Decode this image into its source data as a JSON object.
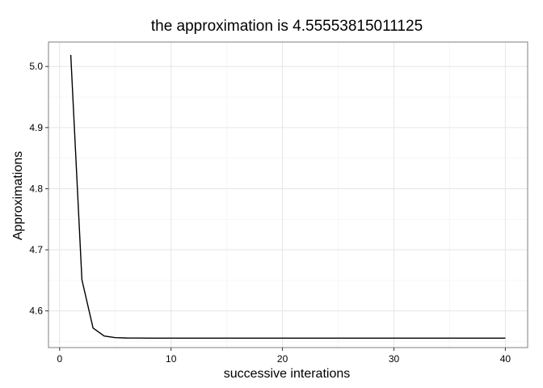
{
  "chart_data": {
    "type": "line",
    "title": "the approximation is 4.55553815011125",
    "xlabel": "successive interations",
    "ylabel": "Approximations",
    "xlim": [
      -1,
      42
    ],
    "ylim": [
      4.54,
      5.04
    ],
    "x_ticks": [
      0,
      10,
      20,
      30,
      40
    ],
    "x_tick_labels": [
      "0",
      "10",
      "20",
      "30",
      "40"
    ],
    "y_ticks": [
      4.6,
      4.7,
      4.8,
      4.9,
      5.0
    ],
    "y_tick_labels": [
      "4.6",
      "4.7",
      "4.8",
      "4.9",
      "5.0"
    ],
    "x_minor_ticks": [
      5,
      15,
      25,
      35
    ],
    "y_minor_ticks": [
      4.55,
      4.65,
      4.75,
      4.85,
      4.95
    ],
    "grid": true,
    "line_color": "#000000",
    "series": [
      {
        "x": [
          1,
          2,
          3,
          4,
          5,
          6,
          7,
          8,
          9,
          10,
          11,
          12,
          13,
          14,
          15,
          16,
          17,
          18,
          19,
          20,
          21,
          22,
          23,
          24,
          25,
          26,
          27,
          28,
          29,
          30,
          31,
          32,
          33,
          34,
          35,
          36,
          37,
          38,
          39,
          40
        ],
        "values": [
          5.019,
          4.651,
          4.572,
          4.559,
          4.5563,
          4.5557,
          4.5556,
          4.5555,
          4.5555,
          4.5555,
          4.5555,
          4.5555,
          4.5555,
          4.5555,
          4.5555,
          4.5555,
          4.5555,
          4.5555,
          4.5555,
          4.5555,
          4.5555,
          4.5555,
          4.5555,
          4.5555,
          4.5555,
          4.5555,
          4.5555,
          4.5555,
          4.5555,
          4.5555,
          4.5555,
          4.5555,
          4.5555,
          4.5555,
          4.5555,
          4.5555,
          4.5555,
          4.5555,
          4.5555,
          4.5555
        ]
      }
    ]
  }
}
